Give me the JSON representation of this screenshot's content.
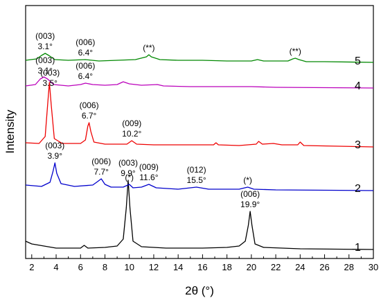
{
  "chart_data": {
    "type": "line",
    "xlabel": "2θ (°)",
    "ylabel": "Intensity",
    "xlim": [
      1.5,
      30
    ],
    "xticks": [
      2,
      4,
      6,
      8,
      10,
      12,
      14,
      16,
      18,
      20,
      22,
      24,
      26,
      28,
      30
    ],
    "yticks_shown": false,
    "grid": false,
    "legend": "none",
    "series": [
      {
        "name": "1",
        "color": "#000000",
        "offset": 0,
        "points": [
          [
            1.5,
            0.12
          ],
          [
            2,
            0.08
          ],
          [
            4,
            0.02
          ],
          [
            6,
            0.02
          ],
          [
            6.3,
            0.06
          ],
          [
            6.6,
            0.02
          ],
          [
            8,
            0.03
          ],
          [
            9,
            0.05
          ],
          [
            9.5,
            0.15
          ],
          [
            9.75,
            0.6
          ],
          [
            9.9,
            1.0
          ],
          [
            10.05,
            0.6
          ],
          [
            10.3,
            0.12
          ],
          [
            11,
            0.04
          ],
          [
            13,
            0.02
          ],
          [
            16,
            0.02
          ],
          [
            18,
            0.03
          ],
          [
            19,
            0.05
          ],
          [
            19.5,
            0.12
          ],
          [
            19.75,
            0.35
          ],
          [
            19.9,
            0.55
          ],
          [
            20.05,
            0.35
          ],
          [
            20.3,
            0.08
          ],
          [
            21,
            0.03
          ],
          [
            24,
            0.01
          ],
          [
            30,
            0
          ]
        ]
      },
      {
        "name": "2",
        "color": "#0000cc",
        "offset": 0.85,
        "points": [
          [
            1.5,
            0.08
          ],
          [
            2.8,
            0.06
          ],
          [
            3.5,
            0.12
          ],
          [
            3.75,
            0.28
          ],
          [
            3.9,
            0.4
          ],
          [
            4.05,
            0.25
          ],
          [
            4.4,
            0.1
          ],
          [
            5.5,
            0.06
          ],
          [
            7,
            0.08
          ],
          [
            7.4,
            0.13
          ],
          [
            7.7,
            0.17
          ],
          [
            8,
            0.09
          ],
          [
            8.5,
            0.05
          ],
          [
            9.5,
            0.05
          ],
          [
            10,
            0.09
          ],
          [
            10.3,
            0.04
          ],
          [
            11,
            0.05
          ],
          [
            11.6,
            0.09
          ],
          [
            12.2,
            0.04
          ],
          [
            14,
            0.02
          ],
          [
            15.5,
            0.05
          ],
          [
            16.5,
            0.02
          ],
          [
            19,
            0.02
          ],
          [
            19.7,
            0.05
          ],
          [
            20.2,
            0.02
          ],
          [
            22,
            0.01
          ],
          [
            30,
            0
          ]
        ]
      },
      {
        "name": "3",
        "color": "#ee0000",
        "offset": 1.48,
        "points": [
          [
            1.5,
            0.06
          ],
          [
            2.6,
            0.05
          ],
          [
            3.1,
            0.15
          ],
          [
            3.3,
            0.6
          ],
          [
            3.45,
            0.93
          ],
          [
            3.6,
            0.6
          ],
          [
            3.85,
            0.12
          ],
          [
            4.5,
            0.05
          ],
          [
            6,
            0.05
          ],
          [
            6.4,
            0.1
          ],
          [
            6.6,
            0.3
          ],
          [
            6.7,
            0.35
          ],
          [
            6.85,
            0.22
          ],
          [
            7.1,
            0.07
          ],
          [
            8,
            0.04
          ],
          [
            9.8,
            0.04
          ],
          [
            10.2,
            0.09
          ],
          [
            10.6,
            0.04
          ],
          [
            12,
            0.03
          ],
          [
            14,
            0.03
          ],
          [
            16.9,
            0.03
          ],
          [
            17.1,
            0.06
          ],
          [
            17.3,
            0.03
          ],
          [
            19,
            0.02
          ],
          [
            20.4,
            0.04
          ],
          [
            20.6,
            0.08
          ],
          [
            20.9,
            0.04
          ],
          [
            21.8,
            0.05
          ],
          [
            22.5,
            0.03
          ],
          [
            23.8,
            0.03
          ],
          [
            24,
            0.07
          ],
          [
            24.3,
            0.02
          ],
          [
            30,
            0
          ]
        ]
      },
      {
        "name": "4",
        "color": "#bb00bb",
        "offset": 2.33,
        "points": [
          [
            1.5,
            0.03
          ],
          [
            2.3,
            0.05
          ],
          [
            2.7,
            0.13
          ],
          [
            3.0,
            0.16
          ],
          [
            3.3,
            0.13
          ],
          [
            3.8,
            0.05
          ],
          [
            5,
            0.03
          ],
          [
            6,
            0.05
          ],
          [
            6.4,
            0.07
          ],
          [
            7,
            0.05
          ],
          [
            8,
            0.04
          ],
          [
            9,
            0.05
          ],
          [
            9.5,
            0.09
          ],
          [
            10,
            0.06
          ],
          [
            11,
            0.04
          ],
          [
            12.3,
            0.05
          ],
          [
            12.8,
            0.03
          ],
          [
            15,
            0.02
          ],
          [
            17,
            0.02
          ],
          [
            18,
            0.02
          ],
          [
            20,
            0.02
          ],
          [
            22,
            0.01
          ],
          [
            30,
            0
          ]
        ]
      },
      {
        "name": "5",
        "color": "#008800",
        "offset": 2.69,
        "points": [
          [
            1.5,
            0.04
          ],
          [
            2.4,
            0.06
          ],
          [
            2.8,
            0.11
          ],
          [
            3.1,
            0.14
          ],
          [
            3.4,
            0.11
          ],
          [
            3.9,
            0.05
          ],
          [
            5,
            0.04
          ],
          [
            6.4,
            0.05
          ],
          [
            7.5,
            0.03
          ],
          [
            9,
            0.04
          ],
          [
            10.5,
            0.05
          ],
          [
            11.4,
            0.09
          ],
          [
            11.6,
            0.12
          ],
          [
            11.8,
            0.09
          ],
          [
            12.5,
            0.05
          ],
          [
            14,
            0.04
          ],
          [
            16,
            0.04
          ],
          [
            18,
            0.03
          ],
          [
            20,
            0.03
          ],
          [
            20.5,
            0.05
          ],
          [
            21,
            0.03
          ],
          [
            23,
            0.03
          ],
          [
            23.4,
            0.06
          ],
          [
            23.6,
            0.07
          ],
          [
            23.9,
            0.05
          ],
          [
            24.5,
            0.02
          ],
          [
            26,
            0.02
          ],
          [
            30,
            0.01
          ]
        ]
      }
    ],
    "annotations": [
      {
        "series": "5",
        "x": 3.1,
        "lines": [
          "(003)",
          "3.1°"
        ]
      },
      {
        "series": "5",
        "x": 6.4,
        "lines": [
          "(006)",
          "6.4°"
        ]
      },
      {
        "series": "5",
        "x": 11.6,
        "lines": [
          "(**)"
        ]
      },
      {
        "series": "5",
        "x": 23.6,
        "lines": [
          "(**)"
        ]
      },
      {
        "series": "4",
        "x": 3.1,
        "lines": [
          "(003)",
          "3.1°"
        ]
      },
      {
        "series": "4",
        "x": 6.4,
        "lines": [
          "(006)",
          "6.4°"
        ]
      },
      {
        "series": "3",
        "x": 3.5,
        "lines": [
          "(003)",
          "3.5°"
        ]
      },
      {
        "series": "3",
        "x": 6.7,
        "lines": [
          "(006)",
          "6.7°"
        ]
      },
      {
        "series": "3",
        "x": 10.2,
        "lines": [
          "(009)",
          "10.2°"
        ]
      },
      {
        "series": "2",
        "x": 3.9,
        "lines": [
          "(003)",
          "3.9°"
        ]
      },
      {
        "series": "2",
        "x": 7.7,
        "lines": [
          "(006)",
          "7.7°"
        ]
      },
      {
        "series": "2",
        "x": 10.0,
        "lines": [
          "(*)"
        ]
      },
      {
        "series": "2",
        "x": 11.6,
        "lines": [
          "(009)",
          "11.6°"
        ]
      },
      {
        "series": "2",
        "x": 15.5,
        "lines": [
          "(012)",
          "15.5°"
        ]
      },
      {
        "series": "2",
        "x": 19.7,
        "lines": [
          "(*)"
        ]
      },
      {
        "series": "1",
        "x": 9.9,
        "lines": [
          "(003)",
          "9.9°"
        ]
      },
      {
        "series": "1",
        "x": 19.9,
        "lines": [
          "(006)",
          "19.9°"
        ]
      }
    ]
  }
}
